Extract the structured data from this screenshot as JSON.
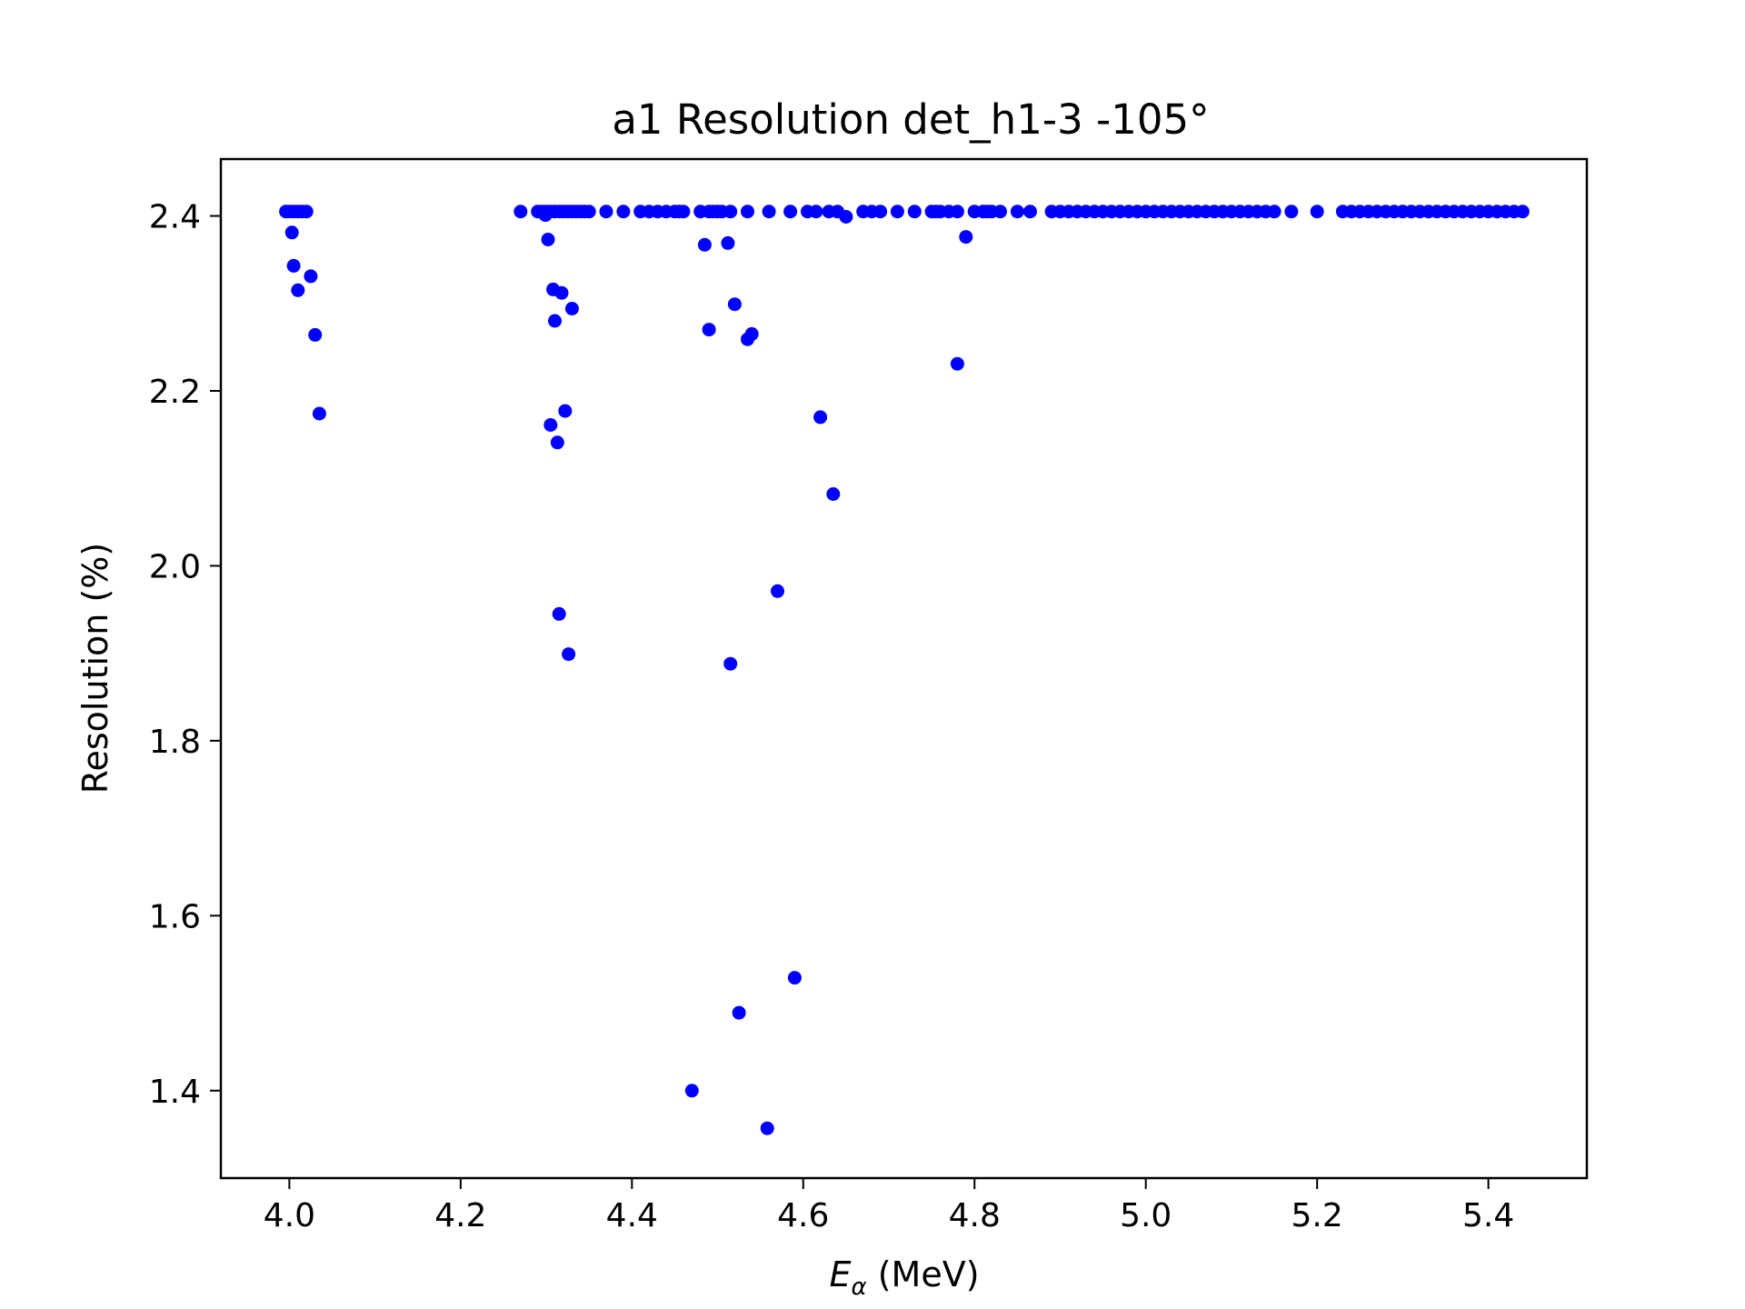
{
  "chart_data": {
    "type": "scatter",
    "title": "a1 Resolution det_h1-3    -105°",
    "xlabel_symbol": "E",
    "xlabel_subscript": "α",
    "xlabel_unit": " (MeV)",
    "ylabel": "Resolution (%)",
    "xlim": [
      3.92,
      5.515
    ],
    "ylim": [
      1.3,
      2.465
    ],
    "xticks": [
      4.0,
      4.2,
      4.4,
      4.6,
      4.8,
      5.0,
      5.2,
      5.4
    ],
    "xtick_labels": [
      "4.0",
      "4.2",
      "4.4",
      "4.6",
      "4.8",
      "5.0",
      "5.2",
      "5.4"
    ],
    "yticks": [
      1.4,
      1.6,
      1.8,
      2.0,
      2.2,
      2.4
    ],
    "ytick_labels": [
      "1.4",
      "1.6",
      "1.8",
      "2.0",
      "2.2",
      "2.4"
    ],
    "marker_color": "#0000ff",
    "grid": false,
    "legend": "none",
    "series": [
      {
        "points": [
          [
            3.996,
            2.405
          ],
          [
            4.0,
            2.405
          ],
          [
            4.005,
            2.405
          ],
          [
            4.01,
            2.405
          ],
          [
            4.015,
            2.405
          ],
          [
            4.02,
            2.405
          ],
          [
            4.003,
            2.381
          ],
          [
            4.005,
            2.343
          ],
          [
            4.01,
            2.315
          ],
          [
            4.025,
            2.331
          ],
          [
            4.03,
            2.264
          ],
          [
            4.035,
            2.174
          ],
          [
            4.27,
            2.405
          ],
          [
            4.29,
            2.405
          ],
          [
            4.295,
            2.405
          ],
          [
            4.3,
            2.405
          ],
          [
            4.305,
            2.405
          ],
          [
            4.31,
            2.405
          ],
          [
            4.315,
            2.405
          ],
          [
            4.32,
            2.405
          ],
          [
            4.325,
            2.405
          ],
          [
            4.33,
            2.405
          ],
          [
            4.335,
            2.405
          ],
          [
            4.34,
            2.405
          ],
          [
            4.345,
            2.405
          ],
          [
            4.35,
            2.405
          ],
          [
            4.37,
            2.405
          ],
          [
            4.39,
            2.405
          ],
          [
            4.41,
            2.405
          ],
          [
            4.42,
            2.405
          ],
          [
            4.43,
            2.405
          ],
          [
            4.44,
            2.405
          ],
          [
            4.45,
            2.405
          ],
          [
            4.455,
            2.405
          ],
          [
            4.46,
            2.405
          ],
          [
            4.48,
            2.405
          ],
          [
            4.49,
            2.405
          ],
          [
            4.495,
            2.405
          ],
          [
            4.5,
            2.405
          ],
          [
            4.505,
            2.405
          ],
          [
            4.515,
            2.405
          ],
          [
            4.535,
            2.405
          ],
          [
            4.56,
            2.405
          ],
          [
            4.585,
            2.405
          ],
          [
            4.605,
            2.405
          ],
          [
            4.615,
            2.405
          ],
          [
            4.63,
            2.405
          ],
          [
            4.64,
            2.405
          ],
          [
            4.67,
            2.405
          ],
          [
            4.68,
            2.405
          ],
          [
            4.69,
            2.405
          ],
          [
            4.71,
            2.405
          ],
          [
            4.73,
            2.405
          ],
          [
            4.75,
            2.405
          ],
          [
            4.755,
            2.405
          ],
          [
            4.76,
            2.405
          ],
          [
            4.77,
            2.405
          ],
          [
            4.78,
            2.405
          ],
          [
            4.8,
            2.405
          ],
          [
            4.81,
            2.405
          ],
          [
            4.815,
            2.405
          ],
          [
            4.82,
            2.405
          ],
          [
            4.83,
            2.405
          ],
          [
            4.85,
            2.405
          ],
          [
            4.865,
            2.405
          ],
          [
            4.89,
            2.405
          ],
          [
            4.9,
            2.405
          ],
          [
            4.91,
            2.405
          ],
          [
            4.92,
            2.405
          ],
          [
            4.93,
            2.405
          ],
          [
            4.94,
            2.405
          ],
          [
            4.95,
            2.405
          ],
          [
            4.96,
            2.405
          ],
          [
            4.97,
            2.405
          ],
          [
            4.98,
            2.405
          ],
          [
            4.99,
            2.405
          ],
          [
            5.0,
            2.405
          ],
          [
            5.01,
            2.405
          ],
          [
            5.02,
            2.405
          ],
          [
            5.03,
            2.405
          ],
          [
            5.04,
            2.405
          ],
          [
            5.05,
            2.405
          ],
          [
            5.06,
            2.405
          ],
          [
            5.07,
            2.405
          ],
          [
            5.08,
            2.405
          ],
          [
            5.09,
            2.405
          ],
          [
            5.1,
            2.405
          ],
          [
            5.11,
            2.405
          ],
          [
            5.12,
            2.405
          ],
          [
            5.13,
            2.405
          ],
          [
            5.14,
            2.405
          ],
          [
            5.15,
            2.405
          ],
          [
            5.17,
            2.405
          ],
          [
            5.2,
            2.405
          ],
          [
            5.23,
            2.405
          ],
          [
            5.24,
            2.405
          ],
          [
            5.25,
            2.405
          ],
          [
            5.26,
            2.405
          ],
          [
            5.27,
            2.405
          ],
          [
            5.28,
            2.405
          ],
          [
            5.29,
            2.405
          ],
          [
            5.3,
            2.405
          ],
          [
            5.31,
            2.405
          ],
          [
            5.32,
            2.405
          ],
          [
            5.33,
            2.405
          ],
          [
            5.34,
            2.405
          ],
          [
            5.35,
            2.405
          ],
          [
            5.36,
            2.405
          ],
          [
            5.37,
            2.405
          ],
          [
            5.38,
            2.405
          ],
          [
            5.39,
            2.405
          ],
          [
            5.4,
            2.405
          ],
          [
            5.41,
            2.405
          ],
          [
            5.42,
            2.405
          ],
          [
            5.43,
            2.405
          ],
          [
            5.44,
            2.405
          ],
          [
            4.299,
            2.401
          ],
          [
            4.302,
            2.373
          ],
          [
            4.305,
            2.161
          ],
          [
            4.308,
            2.316
          ],
          [
            4.31,
            2.28
          ],
          [
            4.313,
            2.141
          ],
          [
            4.315,
            1.945
          ],
          [
            4.318,
            2.312
          ],
          [
            4.322,
            2.177
          ],
          [
            4.326,
            1.899
          ],
          [
            4.33,
            2.294
          ],
          [
            4.47,
            1.4
          ],
          [
            4.485,
            2.367
          ],
          [
            4.49,
            2.27
          ],
          [
            4.512,
            2.369
          ],
          [
            4.515,
            1.888
          ],
          [
            4.52,
            2.299
          ],
          [
            4.525,
            1.489
          ],
          [
            4.535,
            2.259
          ],
          [
            4.54,
            2.265
          ],
          [
            4.558,
            1.357
          ],
          [
            4.57,
            1.971
          ],
          [
            4.59,
            1.529
          ],
          [
            4.62,
            2.17
          ],
          [
            4.635,
            2.082
          ],
          [
            4.65,
            2.399
          ],
          [
            4.78,
            2.231
          ],
          [
            4.79,
            2.376
          ]
        ]
      }
    ]
  }
}
